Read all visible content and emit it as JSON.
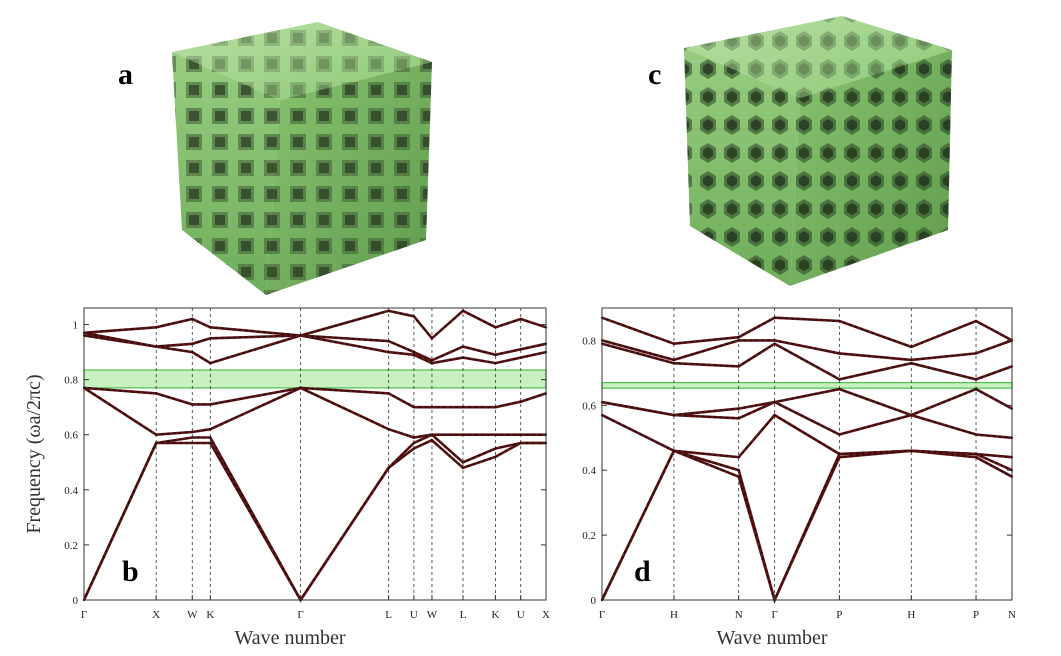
{
  "panels": {
    "a": {
      "letter": "a"
    },
    "b": {
      "letter": "b"
    },
    "c": {
      "letter": "c"
    },
    "d": {
      "letter": "d"
    }
  },
  "colors": {
    "band": "#5a1414",
    "gap_fill": "#c8f0c0",
    "gap_edge": "#4ec24e",
    "lattice": "#8fc87a",
    "frame": "#333333"
  },
  "chart_data": [
    {
      "type": "line",
      "panel": "b",
      "xlabel": "Wave number",
      "ylabel": "Frequency (ωa/2πc)",
      "ylim": [
        0,
        1.06
      ],
      "yticks": [
        "0",
        "0.2",
        "0.4",
        "0.6",
        "0.8",
        "1"
      ],
      "yticks_values": [
        0,
        0.2,
        0.4,
        0.6,
        0.8,
        1.0
      ],
      "kpoints": [
        "Γ",
        "X",
        "W",
        "K",
        "Γ",
        "L",
        "U",
        "W",
        "L",
        "K",
        "U",
        "X"
      ],
      "kpos": [
        0,
        1,
        1.5,
        1.75,
        3.0,
        4.22,
        4.57,
        4.82,
        5.25,
        5.7,
        6.05,
        6.4
      ],
      "band_gap": [
        0.77,
        0.835
      ],
      "series": [
        {
          "values": [
            0,
            0.57,
            0.57,
            0.57,
            0,
            0.48,
            0.55,
            0.58,
            0.48,
            0.52,
            0.57,
            0.57
          ]
        },
        {
          "values": [
            0,
            0.57,
            0.59,
            0.59,
            0,
            0.48,
            0.57,
            0.6,
            0.5,
            0.55,
            0.57,
            0.57
          ]
        },
        {
          "values": [
            0.77,
            0.6,
            0.61,
            0.62,
            0.77,
            0.62,
            0.59,
            0.6,
            0.6,
            0.6,
            0.6,
            0.6
          ]
        },
        {
          "values": [
            0.77,
            0.75,
            0.71,
            0.71,
            0.77,
            0.75,
            0.7,
            0.7,
            0.7,
            0.7,
            0.72,
            0.75
          ]
        },
        {
          "values": [
            0.96,
            0.92,
            0.9,
            0.86,
            0.96,
            0.9,
            0.89,
            0.86,
            0.88,
            0.86,
            0.88,
            0.9
          ]
        },
        {
          "values": [
            0.97,
            0.92,
            0.93,
            0.95,
            0.96,
            0.94,
            0.9,
            0.87,
            0.92,
            0.89,
            0.91,
            0.93
          ]
        },
        {
          "values": [
            0.97,
            0.99,
            1.02,
            0.99,
            0.96,
            1.05,
            1.03,
            0.95,
            1.05,
            0.99,
            1.02,
            0.99
          ]
        }
      ]
    },
    {
      "type": "line",
      "panel": "d",
      "xlabel": "Wave number",
      "ylim": [
        0,
        0.9
      ],
      "yticks": [
        "0",
        "0.2",
        "0.4",
        "0.6",
        "0.8"
      ],
      "yticks_values": [
        0,
        0.2,
        0.4,
        0.6,
        0.8
      ],
      "kpoints": [
        "Γ",
        "H",
        "N",
        "Γ",
        "P",
        "H",
        "P",
        "N"
      ],
      "kpos": [
        0,
        1,
        1.9,
        2.4,
        3.3,
        4.3,
        5.2,
        5.7
      ],
      "band_gap": [
        0.653,
        0.67
      ],
      "series": [
        {
          "values": [
            0,
            0.46,
            0.38,
            0,
            0.44,
            0.46,
            0.44,
            0.38
          ]
        },
        {
          "values": [
            0,
            0.46,
            0.4,
            0,
            0.45,
            0.46,
            0.45,
            0.4
          ]
        },
        {
          "values": [
            0.57,
            0.46,
            0.44,
            0.57,
            0.45,
            0.46,
            0.45,
            0.44
          ]
        },
        {
          "values": [
            0.61,
            0.57,
            0.56,
            0.61,
            0.51,
            0.57,
            0.51,
            0.5
          ]
        },
        {
          "values": [
            0.61,
            0.57,
            0.59,
            0.61,
            0.65,
            0.57,
            0.65,
            0.59
          ]
        },
        {
          "values": [
            0.79,
            0.73,
            0.72,
            0.79,
            0.68,
            0.73,
            0.68,
            0.72
          ]
        },
        {
          "values": [
            0.8,
            0.74,
            0.8,
            0.8,
            0.76,
            0.74,
            0.76,
            0.8
          ]
        },
        {
          "values": [
            0.87,
            0.79,
            0.81,
            0.87,
            0.86,
            0.78,
            0.86,
            0.8
          ]
        }
      ]
    }
  ]
}
